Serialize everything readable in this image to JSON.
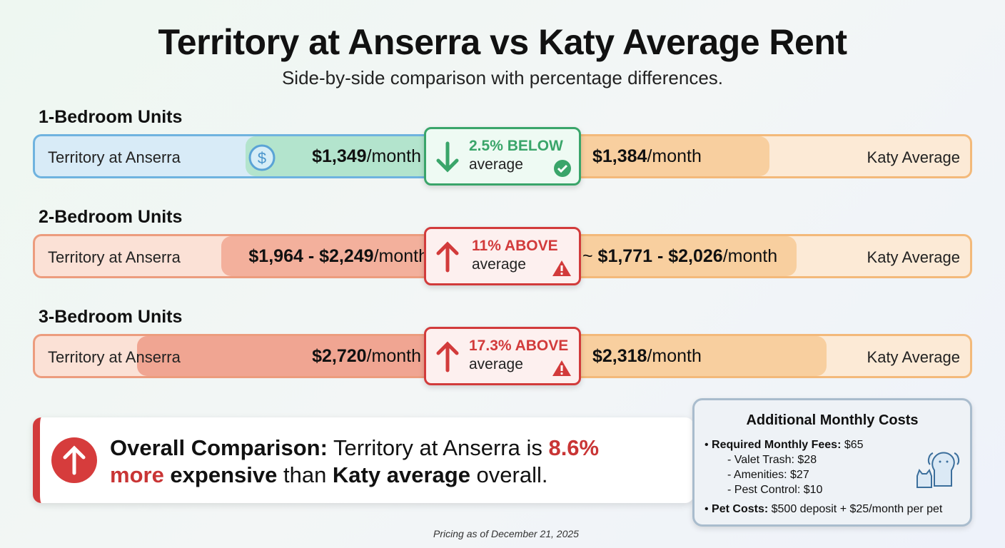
{
  "title": "Territory at Anserra vs Katy Average Rent",
  "subtitle": "Side-by-side comparison with percentage differences.",
  "rows": [
    {
      "section": "1-Bedroom Units",
      "left_label": "Territory at Anserra",
      "left_price": "$1,349",
      "left_unit": "/month",
      "right_prefix": "",
      "right_price": "$1,384",
      "right_unit": "/month",
      "right_label": "Katy Average",
      "pct": "2.5% BELOW",
      "avg": "average",
      "direction": "below",
      "status_icon": "check-circle-icon",
      "color": "#3aa56a"
    },
    {
      "section": "2-Bedroom Units",
      "left_label": "Territory at Anserra",
      "left_price": "$1,964 - $2,249",
      "left_unit": "/month",
      "right_prefix": "~ ",
      "right_price": "$1,771 - $2,026",
      "right_unit": "/month",
      "right_label": "Katy Average",
      "pct": "11% ABOVE",
      "avg": "average",
      "direction": "above",
      "status_icon": "warning-icon",
      "color": "#d23b3b"
    },
    {
      "section": "3-Bedroom Units",
      "left_label": "Territory at Anserra",
      "left_price": "$2,720",
      "left_unit": "/month",
      "right_prefix": "",
      "right_price": "$2,318",
      "right_unit": "/month",
      "right_label": "Katy Average",
      "pct": "17.3% ABOVE",
      "avg": "average",
      "direction": "above",
      "status_icon": "warning-icon",
      "color": "#d23b3b"
    }
  ],
  "overall": {
    "label": "Overall Comparison:",
    "t1": " Territory at Anserra is ",
    "pct": "8.6% more",
    "t2": " expensive",
    "t3": " than ",
    "katy": "Katy average",
    "t4": " overall."
  },
  "additional": {
    "title": "Additional Monthly Costs",
    "fees_label": "Required Monthly Fees:",
    "fees_value": " $65",
    "items": [
      "- Valet Trash: $28",
      "- Amenities: $27",
      "- Pest Control: $10"
    ],
    "pet_label": "Pet Costs:",
    "pet_value": " $500 deposit + $25/month per pet"
  },
  "footer": "Pricing as of December 21, 2025"
}
